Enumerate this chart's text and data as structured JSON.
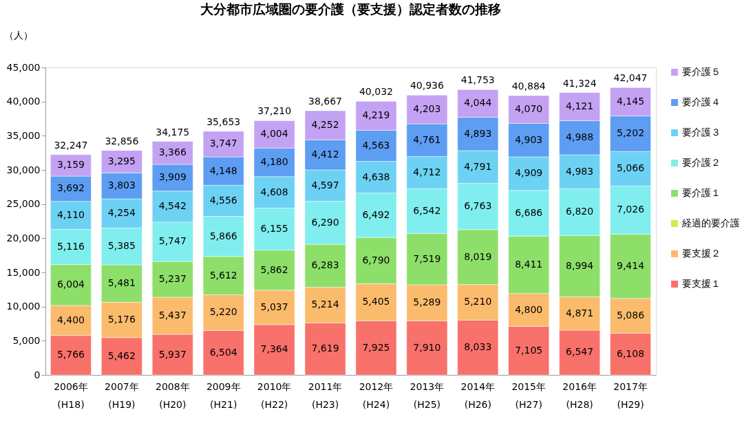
{
  "chart_data": {
    "type": "bar",
    "stacked": true,
    "title": "大分都市広域圏の要介護（要支援）認定者数の推移",
    "ylabel": "（人）",
    "categories": [
      "2006年\n(H18)",
      "2007年\n(H19)",
      "2008年\n(H20)",
      "2009年\n(H21)",
      "2010年\n(H22)",
      "2011年\n(H23)",
      "2012年\n(H24)",
      "2013年\n(H25)",
      "2014年\n(H26)",
      "2015年\n(H27)",
      "2016年\n(H28)",
      "2017年\n(H29)"
    ],
    "series": [
      {
        "name": "要支援１",
        "color": "#f8716a",
        "values": [
          5766,
          5462,
          5937,
          6504,
          7364,
          7619,
          7925,
          7910,
          8033,
          7105,
          6547,
          6108
        ],
        "value_labels": [
          "5,766",
          "5,462",
          "5,937",
          "6,504",
          "7,364",
          "7,619",
          "7,925",
          "7,910",
          "8,033",
          "7,105",
          "6,547",
          "6,108"
        ]
      },
      {
        "name": "要支援２",
        "color": "#fbbb6c",
        "values": [
          4400,
          5176,
          5437,
          5220,
          5037,
          5214,
          5405,
          5289,
          5210,
          4800,
          4871,
          5086
        ],
        "value_labels": [
          "4,400",
          "5,176",
          "5,437",
          "5,220",
          "5,037",
          "5,214",
          "5,405",
          "5,289",
          "5,210",
          "4,800",
          "4,871",
          "5,086"
        ]
      },
      {
        "name": "経過的要介護",
        "color": "#d6e84c",
        "values": [
          null,
          null,
          null,
          null,
          null,
          null,
          null,
          null,
          null,
          null,
          null,
          null
        ]
      },
      {
        "name": "要介護１",
        "color": "#8ddf6a",
        "values": [
          6004,
          5481,
          5237,
          5612,
          5862,
          6283,
          6790,
          7519,
          8019,
          8411,
          8994,
          9414
        ],
        "value_labels": [
          "6,004",
          "5,481",
          "5,237",
          "5,612",
          "5,862",
          "6,283",
          "6,790",
          "7,519",
          "8,019",
          "8,411",
          "8,994",
          "9,414"
        ]
      },
      {
        "name": "要介護２",
        "color": "#80eeee",
        "values": [
          5116,
          5385,
          5747,
          5866,
          6155,
          6290,
          6492,
          6542,
          6763,
          6686,
          6820,
          7026
        ],
        "value_labels": [
          "5,116",
          "5,385",
          "5,747",
          "5,866",
          "6,155",
          "6,290",
          "6,492",
          "6,542",
          "6,763",
          "6,686",
          "6,820",
          "7,026"
        ]
      },
      {
        "name": "要介護３",
        "color": "#6dd1f3",
        "values": [
          4110,
          4254,
          4542,
          4556,
          4608,
          4597,
          4638,
          4712,
          4791,
          4909,
          4983,
          5066
        ],
        "value_labels": [
          "4,110",
          "4,254",
          "4,542",
          "4,556",
          "4,608",
          "4,597",
          "4,638",
          "4,712",
          "4,791",
          "4,909",
          "4,983",
          "5,066"
        ]
      },
      {
        "name": "要介護４",
        "color": "#5d9ef3",
        "values": [
          3692,
          3803,
          3909,
          4148,
          4180,
          4412,
          4563,
          4761,
          4893,
          4903,
          4988,
          5202
        ],
        "value_labels": [
          "3,692",
          "3,803",
          "3,909",
          "4,148",
          "4,180",
          "4,412",
          "4,563",
          "4,761",
          "4,893",
          "4,903",
          "4,988",
          "5,202"
        ]
      },
      {
        "name": "要介護５",
        "color": "#c4a2f3",
        "values": [
          3159,
          3295,
          3366,
          3747,
          4004,
          4252,
          4219,
          4203,
          4044,
          4070,
          4121,
          4145
        ],
        "value_labels": [
          "3,159",
          "3,295",
          "3,366",
          "3,747",
          "4,004",
          "4,252",
          "4,219",
          "4,203",
          "4,044",
          "4,070",
          "4,121",
          "4,145"
        ]
      }
    ],
    "totals": [
      "32,247",
      "32,856",
      "34,175",
      "35,653",
      "37,210",
      "38,667",
      "40,032",
      "40,936",
      "41,753",
      "40,884",
      "41,324",
      "42,047"
    ],
    "ylim": [
      0,
      45000
    ],
    "yticks": [
      0,
      {
        "value": 5000,
        "label": "5,000"
      },
      {
        "value": 10000,
        "label": "10,000"
      },
      {
        "value": 15000,
        "label": "15,000"
      },
      {
        "value": 20000,
        "label": "20,000"
      },
      {
        "value": 25000,
        "label": "25,000"
      },
      {
        "value": 30000,
        "label": "30,000"
      },
      {
        "value": 35000,
        "label": "35,000"
      },
      {
        "value": 40000,
        "label": "40,000"
      },
      {
        "value": 45000,
        "label": "45,000"
      }
    ],
    "grid": false,
    "legend": "right"
  }
}
